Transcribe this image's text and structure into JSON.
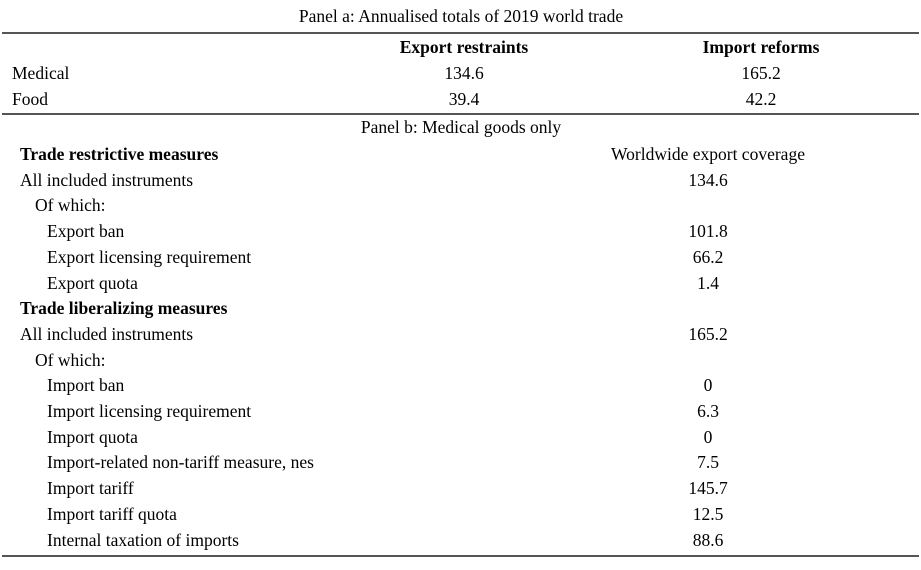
{
  "panel_a": {
    "title": "Panel a: Annualised totals of 2019 world trade",
    "columns": [
      "Export restraints",
      "Import reforms"
    ],
    "rows": [
      {
        "label": "Medical",
        "values": [
          "134.6",
          "165.2"
        ]
      },
      {
        "label": "Food",
        "values": [
          "39.4",
          "42.2"
        ]
      }
    ]
  },
  "panel_b": {
    "title": "Panel b: Medical goods only",
    "column": "Worldwide export coverage",
    "rows": [
      {
        "label": "Trade restrictive measures",
        "value": "",
        "level": 0,
        "bold": true
      },
      {
        "label": "All included instruments",
        "value": "134.6",
        "level": 0
      },
      {
        "label": "Of which:",
        "value": "",
        "level": 1
      },
      {
        "label": "Export ban",
        "value": "101.8",
        "level": 2
      },
      {
        "label": "Export licensing requirement",
        "value": "66.2",
        "level": 2
      },
      {
        "label": "Export quota",
        "value": "1.4",
        "level": 2
      },
      {
        "label": "Trade liberalizing measures",
        "value": "",
        "level": 0,
        "bold": true
      },
      {
        "label": "All included instruments",
        "value": "165.2",
        "level": 0
      },
      {
        "label": "Of which:",
        "value": "",
        "level": 1
      },
      {
        "label": "Import ban",
        "value": "0",
        "level": 2
      },
      {
        "label": "Import licensing requirement",
        "value": "6.3",
        "level": 2
      },
      {
        "label": "Import quota",
        "value": "0",
        "level": 2
      },
      {
        "label": "Import-related non-tariff measure, nes",
        "value": "7.5",
        "level": 2
      },
      {
        "label": "Import tariff",
        "value": "145.7",
        "level": 2
      },
      {
        "label": "Import tariff quota",
        "value": "12.5",
        "level": 2
      },
      {
        "label": "Internal taxation of imports",
        "value": "88.6",
        "level": 2
      }
    ]
  }
}
